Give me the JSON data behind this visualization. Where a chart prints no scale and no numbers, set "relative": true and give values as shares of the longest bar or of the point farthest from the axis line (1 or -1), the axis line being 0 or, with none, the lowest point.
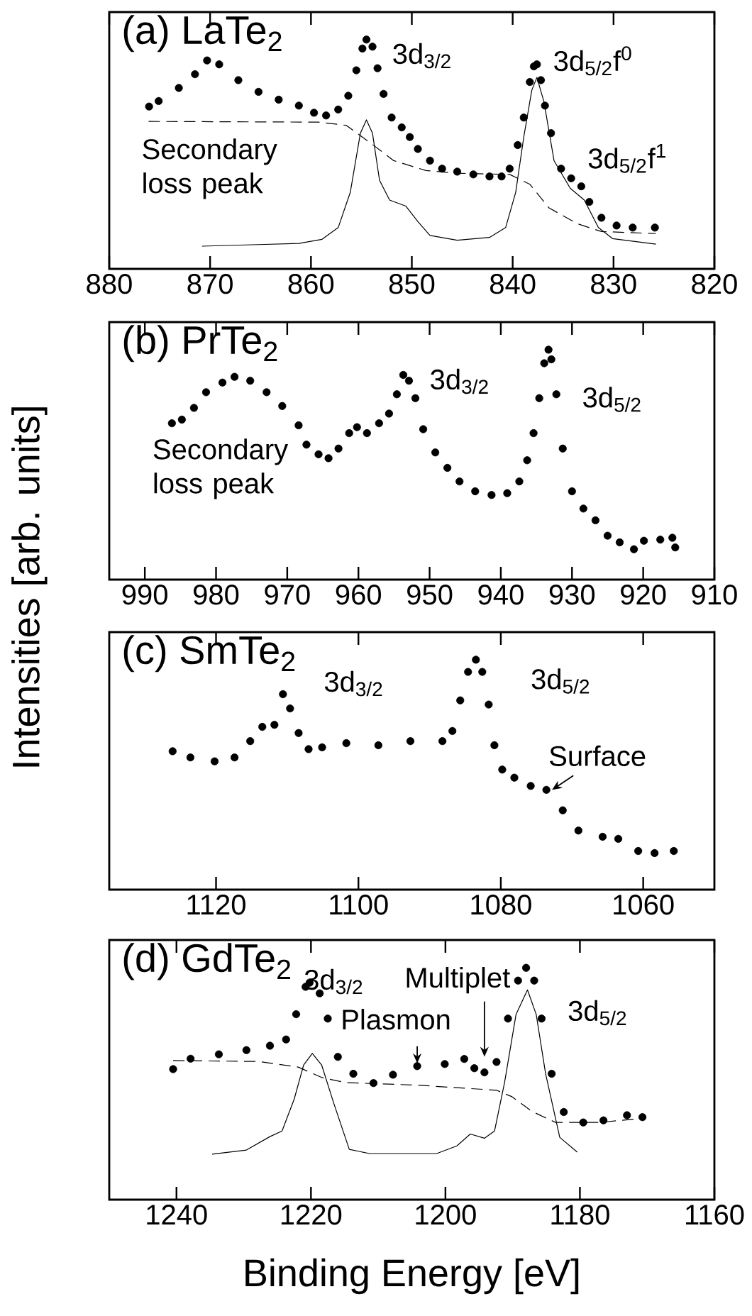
{
  "chart_data": [
    {
      "type": "scatter",
      "title": "(a) LaTe$_{2}$",
      "relative": true,
      "tick_labels": "x",
      "xlim": [
        880,
        820
      ],
      "xticks": [
        880,
        870,
        860,
        850,
        840,
        830,
        820
      ],
      "annotations": [
        "3d$_{3/2}$",
        "3d$_{5/2}$f$^{0}$",
        "3d$_{5/2}$f$^{1}$",
        "Secondary loss peak"
      ],
      "series": [
        {
          "marker": "circle",
          "color": "#000000",
          "x": [
            876.05,
            875.1,
            873.1,
            871.5,
            870.3,
            869.1,
            867.2,
            865.2,
            863.2,
            861.2,
            859.7,
            858.5,
            857.3,
            856.3,
            855.5,
            854.9,
            854.5,
            853.9,
            853.4,
            852.8,
            852.0,
            851.0,
            850.2,
            849.4,
            848.2,
            847.0,
            845.5,
            843.9,
            842.3,
            841.1,
            840.3,
            839.5,
            838.9,
            838.3,
            837.9,
            837.6,
            837.2,
            836.8,
            836.2,
            835.2,
            834.2,
            833.2,
            832.4,
            831.2,
            829.7,
            828.1,
            825.9
          ],
          "values": [
            0.708,
            0.732,
            0.789,
            0.849,
            0.909,
            0.892,
            0.823,
            0.772,
            0.738,
            0.712,
            0.681,
            0.669,
            0.695,
            0.755,
            0.866,
            0.961,
            1.0,
            0.969,
            0.875,
            0.763,
            0.66,
            0.617,
            0.575,
            0.523,
            0.472,
            0.437,
            0.424,
            0.412,
            0.403,
            0.403,
            0.437,
            0.54,
            0.66,
            0.815,
            0.883,
            0.892,
            0.823,
            0.712,
            0.592,
            0.437,
            0.395,
            0.36,
            0.292,
            0.223,
            0.189,
            0.18,
            0.18
          ]
        },
        {
          "type": "line",
          "line_style": "solid",
          "color": "#000000",
          "x": [
            870.8,
            865.2,
            861.2,
            858.9,
            857.3,
            856.1,
            855.1,
            854.5,
            853.9,
            853.2,
            852.2,
            850.6,
            849.4,
            848.2,
            845.5,
            842.3,
            840.7,
            839.7,
            838.9,
            838.1,
            837.6,
            836.9,
            835.9,
            834.3,
            832.9,
            831.5,
            830.1,
            825.8
          ],
          "values": [
            0.099,
            0.106,
            0.111,
            0.129,
            0.18,
            0.334,
            0.592,
            0.65,
            0.592,
            0.386,
            0.3,
            0.274,
            0.206,
            0.146,
            0.125,
            0.137,
            0.18,
            0.334,
            0.575,
            0.78,
            0.835,
            0.729,
            0.472,
            0.352,
            0.3,
            0.18,
            0.132,
            0.108
          ]
        },
        {
          "type": "line",
          "line_style": "dashed",
          "color": "#000000",
          "x": [
            876.1,
            859.3,
            856.5,
            854.1,
            851.8,
            848.6,
            845.5,
            840.3,
            838.3,
            836.4,
            833.6,
            831.2,
            825.8
          ],
          "values": [
            0.643,
            0.64,
            0.626,
            0.549,
            0.472,
            0.429,
            0.417,
            0.412,
            0.369,
            0.266,
            0.197,
            0.163,
            0.154
          ]
        }
      ]
    },
    {
      "type": "scatter",
      "title": "(b) PrTe$_{2}$",
      "ylabel": "Intensities [arb. units]",
      "relative": true,
      "tick_labels": "x",
      "xlim": [
        995,
        910
      ],
      "xticks": [
        990,
        980,
        970,
        960,
        950,
        940,
        930,
        920,
        910
      ],
      "annotations": [
        "3d$_{3/2}$",
        "3d$_{5/2}$",
        "Secondary loss peak"
      ],
      "series": [
        {
          "marker": "circle",
          "color": "#000000",
          "x": [
            986.2,
            984.8,
            983.1,
            981.4,
            979.1,
            977.4,
            975.2,
            972.9,
            970.7,
            968.4,
            967.3,
            965.6,
            964.2,
            962.8,
            961.3,
            960.2,
            958.8,
            957.1,
            955.7,
            954.6,
            953.7,
            952.9,
            952.0,
            950.9,
            949.2,
            947.5,
            945.8,
            943.6,
            941.3,
            939.1,
            937.4,
            936.3,
            935.4,
            934.6,
            933.9,
            933.3,
            932.9,
            932.2,
            931.3,
            930.0,
            928.4,
            926.7,
            925.0,
            923.3,
            921.3,
            919.9,
            917.6,
            915.9,
            915.5
          ],
          "values": [
            0.68,
            0.696,
            0.747,
            0.815,
            0.857,
            0.882,
            0.865,
            0.815,
            0.755,
            0.671,
            0.587,
            0.545,
            0.528,
            0.57,
            0.637,
            0.663,
            0.637,
            0.68,
            0.722,
            0.806,
            0.89,
            0.865,
            0.789,
            0.654,
            0.553,
            0.486,
            0.427,
            0.384,
            0.368,
            0.376,
            0.427,
            0.519,
            0.637,
            0.789,
            0.941,
            1.0,
            0.958,
            0.806,
            0.57,
            0.384,
            0.309,
            0.258,
            0.191,
            0.162,
            0.132,
            0.169,
            0.174,
            0.182,
            0.14
          ]
        }
      ]
    },
    {
      "type": "scatter",
      "title": "(c) SmTe$_{2}$",
      "relative": true,
      "tick_labels": "x",
      "xlim": [
        1135,
        1050
      ],
      "xticks": [
        1120,
        1100,
        1080,
        1060
      ],
      "annotations": [
        "3d$_{3/2}$",
        "3d$_{5/2}$",
        {
          "text": "Surface",
          "x": 1073.6,
          "y": 0.434
        }
      ],
      "series": [
        {
          "marker": "circle",
          "color": "#000000",
          "x": [
            1126.1,
            1123.6,
            1120.2,
            1117.4,
            1115.2,
            1113.5,
            1111.8,
            1110.6,
            1109.6,
            1108.4,
            1107.0,
            1105.1,
            1101.7,
            1097.2,
            1092.7,
            1088.2,
            1086.8,
            1085.7,
            1084.6,
            1083.5,
            1082.6,
            1081.7,
            1080.9,
            1079.8,
            1078.1,
            1075.8,
            1073.6,
            1071.3,
            1069.1,
            1065.7,
            1063.5,
            1060.7,
            1058.4,
            1055.7
          ],
          "values": [
            0.602,
            0.575,
            0.558,
            0.575,
            0.646,
            0.708,
            0.717,
            0.85,
            0.788,
            0.681,
            0.611,
            0.619,
            0.637,
            0.628,
            0.646,
            0.646,
            0.69,
            0.823,
            0.947,
            1.0,
            0.947,
            0.805,
            0.628,
            0.522,
            0.487,
            0.451,
            0.434,
            0.345,
            0.257,
            0.23,
            0.221,
            0.168,
            0.159,
            0.168
          ]
        }
      ]
    },
    {
      "type": "scatter",
      "title": "(d) GdTe$_{2}$",
      "xlabel": "Binding Energy [eV]",
      "relative": true,
      "tick_labels": "x",
      "xlim": [
        1250,
        1160
      ],
      "xticks": [
        1240,
        1220,
        1200,
        1180,
        1160
      ],
      "annotations": [
        "3d$_{3/2}$",
        "3d$_{5/2}$",
        {
          "text": "Plasmon",
          "x": 1204.2,
          "y": 0.576
        },
        {
          "text": "Multiplet",
          "x": 1194.2,
          "y": 0.549
        }
      ],
      "series": [
        {
          "marker": "circle",
          "color": "#000000",
          "x": [
            1240.5,
            1237.9,
            1233.7,
            1229.6,
            1226.1,
            1223.7,
            1222.2,
            1220.8,
            1220.2,
            1218.7,
            1217.5,
            1216.0,
            1213.7,
            1210.7,
            1207.8,
            1204.2,
            1200.1,
            1197.2,
            1195.7,
            1194.2,
            1192.4,
            1190.7,
            1189.2,
            1188.0,
            1186.8,
            1185.7,
            1184.2,
            1182.4,
            1179.5,
            1176.5,
            1173.0,
            1170.7
          ],
          "values": [
            0.563,
            0.608,
            0.627,
            0.645,
            0.664,
            0.691,
            0.8,
            0.918,
            0.936,
            0.89,
            0.781,
            0.616,
            0.543,
            0.503,
            0.539,
            0.576,
            0.585,
            0.607,
            0.567,
            0.549,
            0.594,
            0.781,
            0.945,
            1.0,
            0.945,
            0.781,
            0.543,
            0.378,
            0.333,
            0.342,
            0.364,
            0.356
          ]
        },
        {
          "type": "line",
          "line_style": "solid",
          "color": "#000000",
          "x": [
            1234.7,
            1229.6,
            1226.1,
            1224.3,
            1222.5,
            1221.1,
            1219.8,
            1218.4,
            1216.6,
            1214.3,
            1211.3,
            1201.3,
            1198.3,
            1196.3,
            1194.2,
            1192.7,
            1191.2,
            1189.5,
            1187.8,
            1186.5,
            1185.1,
            1183.0,
            1180.4
          ],
          "values": [
            0.196,
            0.214,
            0.272,
            0.296,
            0.433,
            0.58,
            0.631,
            0.58,
            0.415,
            0.217,
            0.199,
            0.199,
            0.232,
            0.283,
            0.265,
            0.296,
            0.506,
            0.799,
            0.905,
            0.799,
            0.543,
            0.269,
            0.205
          ]
        },
        {
          "type": "line",
          "line_style": "dashed",
          "color": "#000000",
          "x": [
            1240.5,
            1227.8,
            1221.9,
            1218.4,
            1214.9,
            1204.2,
            1192.4,
            1190.1,
            1187.1,
            1183.6,
            1177.1,
            1170.7
          ],
          "values": [
            0.6,
            0.596,
            0.572,
            0.527,
            0.505,
            0.494,
            0.472,
            0.444,
            0.38,
            0.333,
            0.333,
            0.351
          ]
        }
      ]
    }
  ]
}
